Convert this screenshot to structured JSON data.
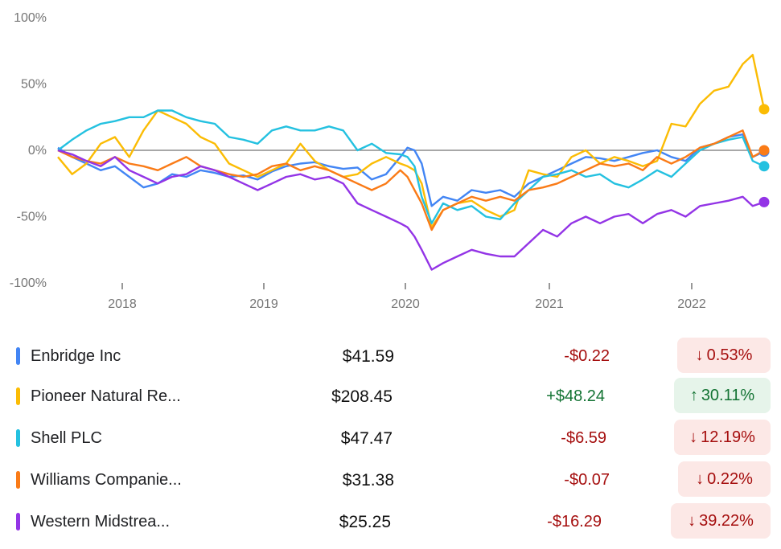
{
  "chart_data": {
    "type": "line",
    "title": "",
    "xlabel": "",
    "ylabel": "",
    "y_ticks": [
      "100%",
      "50%",
      "0%",
      "-50%",
      "-100%"
    ],
    "x_ticks": [
      "2018",
      "2019",
      "2020",
      "2021",
      "2022"
    ],
    "ylim": [
      -100,
      100
    ],
    "xlim": [
      2017.6,
      2022.55
    ],
    "zero_line": true,
    "series": [
      {
        "name": "Enbridge Inc",
        "color": "#4285f4",
        "points": [
          [
            2017.6,
            2
          ],
          [
            2017.7,
            -5
          ],
          [
            2017.8,
            -10
          ],
          [
            2017.9,
            -15
          ],
          [
            2018.0,
            -12
          ],
          [
            2018.1,
            -20
          ],
          [
            2018.2,
            -28
          ],
          [
            2018.3,
            -25
          ],
          [
            2018.4,
            -18
          ],
          [
            2018.5,
            -20
          ],
          [
            2018.6,
            -15
          ],
          [
            2018.7,
            -17
          ],
          [
            2018.8,
            -20
          ],
          [
            2018.9,
            -19
          ],
          [
            2019.0,
            -22
          ],
          [
            2019.1,
            -16
          ],
          [
            2019.2,
            -12
          ],
          [
            2019.3,
            -10
          ],
          [
            2019.4,
            -9
          ],
          [
            2019.5,
            -12
          ],
          [
            2019.6,
            -14
          ],
          [
            2019.7,
            -13
          ],
          [
            2019.8,
            -22
          ],
          [
            2019.9,
            -18
          ],
          [
            2020.0,
            -5
          ],
          [
            2020.05,
            2
          ],
          [
            2020.1,
            0
          ],
          [
            2020.15,
            -10
          ],
          [
            2020.22,
            -42
          ],
          [
            2020.3,
            -35
          ],
          [
            2020.4,
            -38
          ],
          [
            2020.5,
            -30
          ],
          [
            2020.6,
            -32
          ],
          [
            2020.7,
            -30
          ],
          [
            2020.8,
            -35
          ],
          [
            2020.9,
            -25
          ],
          [
            2021.0,
            -20
          ],
          [
            2021.1,
            -15
          ],
          [
            2021.2,
            -10
          ],
          [
            2021.3,
            -5
          ],
          [
            2021.4,
            -6
          ],
          [
            2021.5,
            -8
          ],
          [
            2021.6,
            -5
          ],
          [
            2021.7,
            -2
          ],
          [
            2021.8,
            0
          ],
          [
            2021.9,
            -5
          ],
          [
            2022.0,
            -8
          ],
          [
            2022.1,
            2
          ],
          [
            2022.2,
            5
          ],
          [
            2022.3,
            10
          ],
          [
            2022.4,
            12
          ],
          [
            2022.47,
            -5
          ],
          [
            2022.55,
            -1
          ]
        ]
      },
      {
        "name": "Pioneer Natural Re...",
        "color": "#fbbc04",
        "points": [
          [
            2017.6,
            -5
          ],
          [
            2017.7,
            -18
          ],
          [
            2017.8,
            -10
          ],
          [
            2017.9,
            5
          ],
          [
            2018.0,
            10
          ],
          [
            2018.1,
            -5
          ],
          [
            2018.2,
            15
          ],
          [
            2018.3,
            30
          ],
          [
            2018.4,
            25
          ],
          [
            2018.5,
            20
          ],
          [
            2018.6,
            10
          ],
          [
            2018.7,
            5
          ],
          [
            2018.8,
            -10
          ],
          [
            2018.9,
            -15
          ],
          [
            2019.0,
            -20
          ],
          [
            2019.1,
            -15
          ],
          [
            2019.2,
            -10
          ],
          [
            2019.3,
            5
          ],
          [
            2019.4,
            -8
          ],
          [
            2019.5,
            -15
          ],
          [
            2019.6,
            -20
          ],
          [
            2019.7,
            -18
          ],
          [
            2019.8,
            -10
          ],
          [
            2019.9,
            -5
          ],
          [
            2020.0,
            -10
          ],
          [
            2020.05,
            -12
          ],
          [
            2020.1,
            -15
          ],
          [
            2020.15,
            -25
          ],
          [
            2020.22,
            -58
          ],
          [
            2020.3,
            -45
          ],
          [
            2020.4,
            -40
          ],
          [
            2020.5,
            -38
          ],
          [
            2020.6,
            -45
          ],
          [
            2020.7,
            -50
          ],
          [
            2020.8,
            -45
          ],
          [
            2020.9,
            -15
          ],
          [
            2021.0,
            -18
          ],
          [
            2021.1,
            -20
          ],
          [
            2021.2,
            -5
          ],
          [
            2021.3,
            0
          ],
          [
            2021.4,
            -10
          ],
          [
            2021.5,
            -5
          ],
          [
            2021.6,
            -8
          ],
          [
            2021.7,
            -12
          ],
          [
            2021.8,
            -8
          ],
          [
            2021.9,
            20
          ],
          [
            2022.0,
            18
          ],
          [
            2022.1,
            35
          ],
          [
            2022.2,
            45
          ],
          [
            2022.3,
            48
          ],
          [
            2022.4,
            65
          ],
          [
            2022.47,
            72
          ],
          [
            2022.55,
            31
          ]
        ]
      },
      {
        "name": "Shell PLC",
        "color": "#24c1e0",
        "points": [
          [
            2017.6,
            0
          ],
          [
            2017.7,
            8
          ],
          [
            2017.8,
            15
          ],
          [
            2017.9,
            20
          ],
          [
            2018.0,
            22
          ],
          [
            2018.1,
            25
          ],
          [
            2018.2,
            25
          ],
          [
            2018.3,
            30
          ],
          [
            2018.4,
            30
          ],
          [
            2018.5,
            25
          ],
          [
            2018.6,
            22
          ],
          [
            2018.7,
            20
          ],
          [
            2018.8,
            10
          ],
          [
            2018.9,
            8
          ],
          [
            2019.0,
            5
          ],
          [
            2019.1,
            15
          ],
          [
            2019.2,
            18
          ],
          [
            2019.3,
            15
          ],
          [
            2019.4,
            15
          ],
          [
            2019.5,
            18
          ],
          [
            2019.6,
            15
          ],
          [
            2019.7,
            0
          ],
          [
            2019.8,
            5
          ],
          [
            2019.9,
            -2
          ],
          [
            2020.0,
            -3
          ],
          [
            2020.05,
            -5
          ],
          [
            2020.1,
            -12
          ],
          [
            2020.15,
            -35
          ],
          [
            2020.22,
            -55
          ],
          [
            2020.3,
            -40
          ],
          [
            2020.4,
            -45
          ],
          [
            2020.5,
            -42
          ],
          [
            2020.6,
            -50
          ],
          [
            2020.7,
            -52
          ],
          [
            2020.8,
            -40
          ],
          [
            2020.9,
            -30
          ],
          [
            2021.0,
            -20
          ],
          [
            2021.1,
            -18
          ],
          [
            2021.2,
            -15
          ],
          [
            2021.3,
            -20
          ],
          [
            2021.4,
            -18
          ],
          [
            2021.5,
            -25
          ],
          [
            2021.6,
            -28
          ],
          [
            2021.7,
            -22
          ],
          [
            2021.8,
            -15
          ],
          [
            2021.9,
            -20
          ],
          [
            2022.0,
            -10
          ],
          [
            2022.1,
            0
          ],
          [
            2022.2,
            5
          ],
          [
            2022.3,
            8
          ],
          [
            2022.4,
            10
          ],
          [
            2022.47,
            -8
          ],
          [
            2022.55,
            -12
          ]
        ]
      },
      {
        "name": "Williams Companie...",
        "color": "#fa7b17",
        "points": [
          [
            2017.6,
            0
          ],
          [
            2017.7,
            -5
          ],
          [
            2017.8,
            -8
          ],
          [
            2017.9,
            -10
          ],
          [
            2018.0,
            -5
          ],
          [
            2018.1,
            -10
          ],
          [
            2018.2,
            -12
          ],
          [
            2018.3,
            -15
          ],
          [
            2018.4,
            -10
          ],
          [
            2018.5,
            -5
          ],
          [
            2018.6,
            -12
          ],
          [
            2018.7,
            -15
          ],
          [
            2018.8,
            -18
          ],
          [
            2018.9,
            -20
          ],
          [
            2019.0,
            -18
          ],
          [
            2019.1,
            -12
          ],
          [
            2019.2,
            -10
          ],
          [
            2019.3,
            -15
          ],
          [
            2019.4,
            -12
          ],
          [
            2019.5,
            -15
          ],
          [
            2019.6,
            -20
          ],
          [
            2019.7,
            -25
          ],
          [
            2019.8,
            -30
          ],
          [
            2019.9,
            -25
          ],
          [
            2020.0,
            -15
          ],
          [
            2020.05,
            -20
          ],
          [
            2020.1,
            -30
          ],
          [
            2020.15,
            -40
          ],
          [
            2020.22,
            -60
          ],
          [
            2020.3,
            -45
          ],
          [
            2020.4,
            -40
          ],
          [
            2020.5,
            -35
          ],
          [
            2020.6,
            -38
          ],
          [
            2020.7,
            -35
          ],
          [
            2020.8,
            -38
          ],
          [
            2020.9,
            -30
          ],
          [
            2021.0,
            -28
          ],
          [
            2021.1,
            -25
          ],
          [
            2021.2,
            -20
          ],
          [
            2021.3,
            -15
          ],
          [
            2021.4,
            -10
          ],
          [
            2021.5,
            -12
          ],
          [
            2021.6,
            -10
          ],
          [
            2021.7,
            -15
          ],
          [
            2021.8,
            -5
          ],
          [
            2021.9,
            -10
          ],
          [
            2022.0,
            -5
          ],
          [
            2022.1,
            2
          ],
          [
            2022.2,
            5
          ],
          [
            2022.3,
            10
          ],
          [
            2022.4,
            15
          ],
          [
            2022.47,
            -5
          ],
          [
            2022.55,
            0
          ]
        ]
      },
      {
        "name": "Western Midstrea...",
        "color": "#9334e6",
        "points": [
          [
            2017.6,
            0
          ],
          [
            2017.7,
            -3
          ],
          [
            2017.8,
            -8
          ],
          [
            2017.9,
            -12
          ],
          [
            2018.0,
            -5
          ],
          [
            2018.1,
            -15
          ],
          [
            2018.2,
            -20
          ],
          [
            2018.3,
            -25
          ],
          [
            2018.4,
            -20
          ],
          [
            2018.5,
            -18
          ],
          [
            2018.6,
            -12
          ],
          [
            2018.7,
            -15
          ],
          [
            2018.8,
            -20
          ],
          [
            2018.9,
            -25
          ],
          [
            2019.0,
            -30
          ],
          [
            2019.1,
            -25
          ],
          [
            2019.2,
            -20
          ],
          [
            2019.3,
            -18
          ],
          [
            2019.4,
            -22
          ],
          [
            2019.5,
            -20
          ],
          [
            2019.6,
            -25
          ],
          [
            2019.7,
            -40
          ],
          [
            2019.8,
            -45
          ],
          [
            2019.9,
            -50
          ],
          [
            2020.0,
            -55
          ],
          [
            2020.05,
            -58
          ],
          [
            2020.1,
            -65
          ],
          [
            2020.15,
            -75
          ],
          [
            2020.22,
            -90
          ],
          [
            2020.3,
            -85
          ],
          [
            2020.4,
            -80
          ],
          [
            2020.5,
            -75
          ],
          [
            2020.6,
            -78
          ],
          [
            2020.7,
            -80
          ],
          [
            2020.8,
            -80
          ],
          [
            2020.9,
            -70
          ],
          [
            2021.0,
            -60
          ],
          [
            2021.1,
            -65
          ],
          [
            2021.2,
            -55
          ],
          [
            2021.3,
            -50
          ],
          [
            2021.4,
            -55
          ],
          [
            2021.5,
            -50
          ],
          [
            2021.6,
            -48
          ],
          [
            2021.7,
            -55
          ],
          [
            2021.8,
            -48
          ],
          [
            2021.9,
            -45
          ],
          [
            2022.0,
            -50
          ],
          [
            2022.1,
            -42
          ],
          [
            2022.2,
            -40
          ],
          [
            2022.3,
            -38
          ],
          [
            2022.4,
            -35
          ],
          [
            2022.47,
            -42
          ],
          [
            2022.55,
            -39
          ]
        ]
      }
    ]
  },
  "stocks": [
    {
      "name": "Enbridge Inc",
      "price": "$41.59",
      "change": "-$0.22",
      "arrow": "↓",
      "percent": "0.53%",
      "color": "#4285f4",
      "direction": "neg"
    },
    {
      "name": "Pioneer Natural Re...",
      "price": "$208.45",
      "change": "+$48.24",
      "arrow": "↑",
      "percent": "30.11%",
      "color": "#fbbc04",
      "direction": "pos"
    },
    {
      "name": "Shell PLC",
      "price": "$47.47",
      "change": "-$6.59",
      "arrow": "↓",
      "percent": "12.19%",
      "color": "#24c1e0",
      "direction": "neg"
    },
    {
      "name": "Williams Companie...",
      "price": "$31.38",
      "change": "-$0.07",
      "arrow": "↓",
      "percent": "0.22%",
      "color": "#fa7b17",
      "direction": "neg"
    },
    {
      "name": "Western Midstrea...",
      "price": "$25.25",
      "change": "-$16.29",
      "arrow": "↓",
      "percent": "39.22%",
      "color": "#9334e6",
      "direction": "neg"
    }
  ]
}
